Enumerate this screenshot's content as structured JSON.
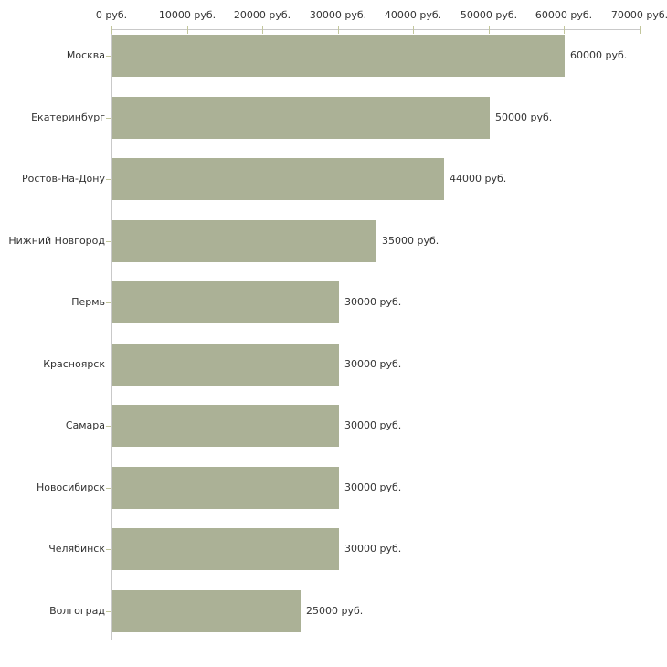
{
  "chart_data": {
    "type": "bar",
    "orientation": "horizontal",
    "title": "",
    "xlabel": "",
    "ylabel": "",
    "xlim": [
      0,
      70000
    ],
    "grid": false,
    "legend": false,
    "categories": [
      "Москва",
      "Екатеринбург",
      "Ростов-На-Дону",
      "Нижний Новгород",
      "Пермь",
      "Красноярск",
      "Самара",
      "Новосибирск",
      "Челябинск",
      "Волгоград"
    ],
    "values": [
      60000,
      50000,
      44000,
      35000,
      30000,
      30000,
      30000,
      30000,
      30000,
      25000
    ],
    "value_labels": [
      "60000 руб.",
      "50000 руб.",
      "44000 руб.",
      "35000 руб.",
      "30000 руб.",
      "30000 руб.",
      "30000 руб.",
      "30000 руб.",
      "30000 руб.",
      "25000 руб."
    ],
    "x_ticks": [
      {
        "value": 0,
        "label": "0 руб."
      },
      {
        "value": 10000,
        "label": "10000 руб."
      },
      {
        "value": 20000,
        "label": "20000 руб."
      },
      {
        "value": 30000,
        "label": "30000 руб."
      },
      {
        "value": 40000,
        "label": "40000 руб."
      },
      {
        "value": 50000,
        "label": "50000 руб."
      },
      {
        "value": 60000,
        "label": "60000 руб."
      },
      {
        "value": 70000,
        "label": "70000 руб."
      }
    ],
    "colors": {
      "bar": "#abb196",
      "axis_line": "#c9c9c9",
      "tick_mark": "#c2c69b",
      "text": "#333333",
      "background": "#ffffff"
    }
  }
}
